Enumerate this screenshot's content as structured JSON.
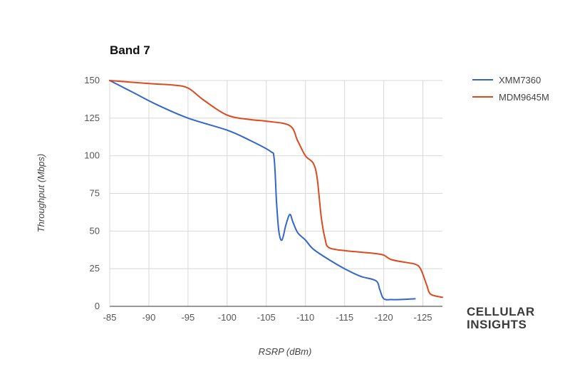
{
  "chart_data": {
    "type": "line",
    "title": "Band 7",
    "xlabel": "RSRP (dBm)",
    "ylabel": "Throughput (Mbps)",
    "xlim": [
      -85,
      -127.5
    ],
    "ylim": [
      0,
      150
    ],
    "x_ticks": [
      -85,
      -90,
      -95,
      -100,
      -105,
      -110,
      -115,
      -120,
      -125
    ],
    "y_ticks": [
      0,
      25,
      50,
      75,
      100,
      125,
      150
    ],
    "grid": true,
    "legend_position": "right",
    "series": [
      {
        "name": "XMM7360",
        "color": "#3366cc",
        "x": [
          -85,
          -88,
          -91,
          -95,
          -100,
          -103,
          -105.5,
          -106,
          -106.3,
          -106.6,
          -107,
          -107.5,
          -108,
          -108.4,
          -109,
          -110,
          -111,
          -113,
          -115,
          -117,
          -119,
          -119.5,
          -120,
          -121,
          -122,
          -124
        ],
        "y": [
          150,
          142,
          134,
          125,
          117,
          110,
          103,
          98,
          70,
          50,
          44,
          54,
          61,
          56,
          49,
          44,
          38,
          31,
          25,
          20,
          17,
          11,
          5,
          4.5,
          4.5,
          5
        ]
      },
      {
        "name": "MDM9645M",
        "color": "#dc4a1f",
        "x": [
          -85,
          -90,
          -93,
          -95,
          -97,
          -100,
          -103,
          -105,
          -108,
          -109,
          -110,
          -111,
          -111.5,
          -112,
          -112.5,
          -113,
          -115,
          -117,
          -119,
          -120,
          -121,
          -123,
          -124,
          -124.7,
          -125.5,
          -126,
          -127.5
        ],
        "y": [
          150,
          148,
          147,
          145,
          137,
          127,
          124,
          123,
          120,
          110,
          100,
          95,
          85,
          60,
          45,
          39,
          37,
          36,
          35,
          34,
          31,
          29,
          28,
          25,
          14,
          8,
          6
        ]
      }
    ]
  },
  "branding": {
    "line1": "CELLULAR",
    "line2": "INSIGHTS"
  }
}
